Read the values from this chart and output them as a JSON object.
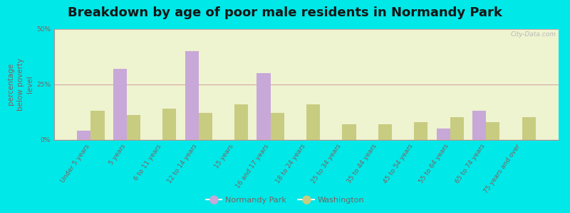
{
  "title": "Breakdown by age of poor male residents in Normandy Park",
  "categories": [
    "Under 5 years",
    "5 years",
    "6 to 11 years",
    "12 to 14 years",
    "15 years",
    "16 and 17 years",
    "18 to 24 years",
    "25 to 34 years",
    "35 to 44 years",
    "45 to 54 years",
    "55 to 64 years",
    "65 to 74 years",
    "75 years and over"
  ],
  "normandy_park": [
    4,
    32,
    0,
    40,
    0,
    30,
    0,
    0,
    0,
    0,
    5,
    13,
    0
  ],
  "washington": [
    13,
    11,
    14,
    12,
    16,
    12,
    16,
    7,
    7,
    8,
    10,
    8,
    10
  ],
  "normandy_color": "#c8a8d8",
  "washington_color": "#c8cc80",
  "plot_bg_color": "#eef3d0",
  "ylabel": "percentage\nbelow poverty\nlevel",
  "ylim": [
    0,
    50
  ],
  "yticks": [
    0,
    25,
    50
  ],
  "ytick_labels": [
    "0%",
    "25%",
    "50%"
  ],
  "grid_color": "#d0a0a0",
  "outer_bg": "#00e8e8",
  "title_fontsize": 13,
  "axis_label_fontsize": 7.5,
  "tick_fontsize": 6.5,
  "legend_labels": [
    "Normandy Park",
    "Washington"
  ],
  "watermark": "City-Data.com",
  "text_color": "#806060"
}
